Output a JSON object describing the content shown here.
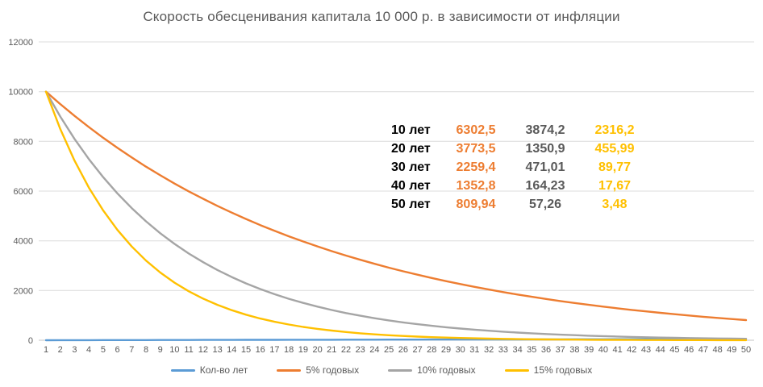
{
  "title": "Скорость обесценивания капитала 10 000 р. в зависимости от инфляции",
  "chart_data": {
    "type": "line",
    "x": [
      1,
      2,
      3,
      4,
      5,
      6,
      7,
      8,
      9,
      10,
      11,
      12,
      13,
      14,
      15,
      16,
      17,
      18,
      19,
      20,
      21,
      22,
      23,
      24,
      25,
      26,
      27,
      28,
      29,
      30,
      31,
      32,
      33,
      34,
      35,
      36,
      37,
      38,
      39,
      40,
      41,
      42,
      43,
      44,
      45,
      46,
      47,
      48,
      49,
      50
    ],
    "series": [
      {
        "name": "Кол-во лет",
        "color": "#5B9BD5",
        "values": [
          1,
          2,
          3,
          4,
          5,
          6,
          7,
          8,
          9,
          10,
          11,
          12,
          13,
          14,
          15,
          16,
          17,
          18,
          19,
          20,
          21,
          22,
          23,
          24,
          25,
          26,
          27,
          28,
          29,
          30,
          31,
          32,
          33,
          34,
          35,
          36,
          37,
          38,
          39,
          40,
          41,
          42,
          43,
          44,
          45,
          46,
          47,
          48,
          49,
          50
        ]
      },
      {
        "name": "5% годовых",
        "color": "#ED7D31",
        "values": [
          10000,
          9500,
          9025,
          8573.75,
          8145.06,
          7737.81,
          7350.92,
          6983.37,
          6634.2,
          6302.49,
          5987.37,
          5688.0,
          5403.6,
          5133.42,
          4876.75,
          4632.91,
          4401.27,
          4181.2,
          3972.14,
          3773.54,
          3584.86,
          3405.62,
          3235.34,
          3073.57,
          2919.89,
          2773.9,
          2635.2,
          2503.44,
          2378.27,
          2259.36,
          2146.39,
          2039.07,
          1937.12,
          1840.26,
          1748.25,
          1660.83,
          1577.79,
          1498.9,
          1423.96,
          1352.76,
          1285.12,
          1220.86,
          1159.82,
          1101.83,
          1046.74,
          994.4,
          944.68,
          897.45,
          852.57,
          809.94
        ]
      },
      {
        "name": "10% годовых",
        "color": "#A5A5A5",
        "values": [
          10000,
          9000,
          8100,
          7290,
          6561,
          5904.9,
          5314.41,
          4782.97,
          4304.67,
          3874.2,
          3486.78,
          3138.11,
          2824.3,
          2541.87,
          2287.68,
          2058.91,
          1853.02,
          1667.72,
          1500.95,
          1350.85,
          1215.77,
          1094.19,
          984.77,
          886.29,
          797.66,
          717.9,
          646.11,
          581.5,
          523.35,
          471.01,
          423.91,
          381.52,
          343.37,
          309.03,
          278.13,
          250.32,
          225.28,
          202.76,
          182.48,
          164.23,
          147.81,
          133.03,
          119.72,
          107.75,
          96.98,
          87.28,
          78.55,
          70.7,
          63.63,
          57.26
        ]
      },
      {
        "name": "15% годовых",
        "color": "#FFC000",
        "values": [
          10000,
          8500,
          7225,
          6141.25,
          5220.06,
          4437.05,
          3771.5,
          3205.77,
          2724.9,
          2316.17,
          1968.74,
          1673.43,
          1422.42,
          1209.06,
          1027.7,
          873.54,
          742.51,
          631.14,
          536.47,
          455.99,
          387.6,
          329.46,
          280.04,
          238.03,
          202.33,
          171.98,
          146.18,
          124.25,
          105.62,
          89.77,
          76.31,
          64.86,
          55.13,
          46.86,
          39.83,
          33.86,
          28.78,
          24.46,
          20.79,
          17.67,
          15.02,
          12.77,
          10.85,
          9.23,
          7.84,
          6.67,
          5.67,
          4.82,
          4.09,
          3.48
        ]
      }
    ],
    "title": "Скорость обесценивания капитала 10 000 р. в зависимости от инфляции",
    "xlabel": "",
    "ylabel": "",
    "ylim": [
      0,
      12000
    ],
    "yticks": [
      0,
      2000,
      4000,
      6000,
      8000,
      10000,
      12000
    ],
    "grid": true,
    "legend_position": "bottom"
  },
  "annotation_table": {
    "rows": [
      {
        "label": "10 лет",
        "v5": "6302,5",
        "v10": "3874,2",
        "v15": "2316,2"
      },
      {
        "label": "20 лет",
        "v5": "3773,5",
        "v10": "1350,9",
        "v15": "455,99"
      },
      {
        "label": "30 лет",
        "v5": "2259,4",
        "v10": "471,01",
        "v15": "89,77"
      },
      {
        "label": "40 лет",
        "v5": "1352,8",
        "v10": "164,23",
        "v15": "17,67"
      },
      {
        "label": "50 лет",
        "v5": "809,94",
        "v10": "57,26",
        "v15": "3,48"
      }
    ],
    "value_colors": {
      "v5": "#ED7D31",
      "v10": "#595959",
      "v15": "#FFC000"
    }
  },
  "colors": {
    "title": "#595959",
    "axis_labels": "#595959",
    "gridline": "#DCDCDC",
    "axis_line": "#C6C6C6",
    "background": "#FFFFFF"
  }
}
